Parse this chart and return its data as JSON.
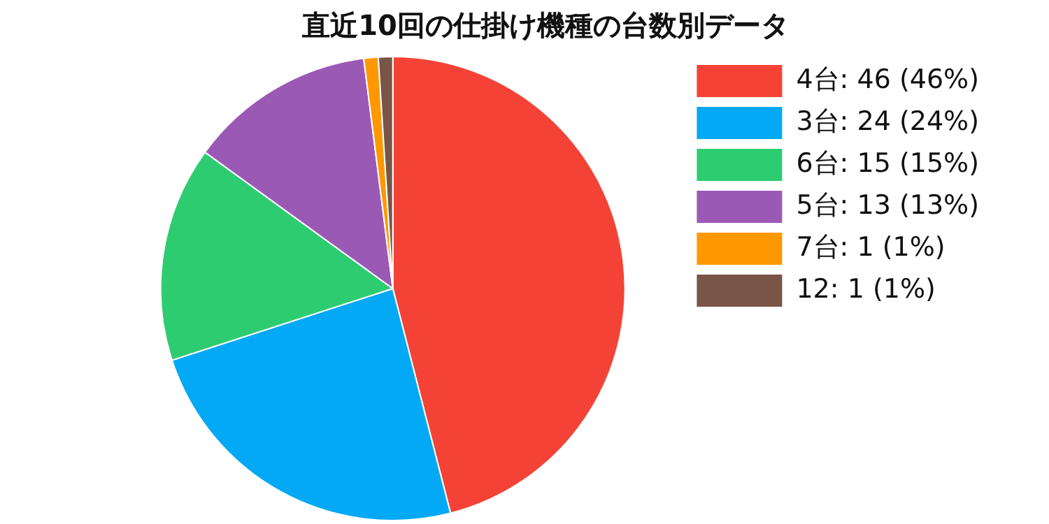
{
  "chart_data": {
    "type": "pie",
    "title": "直近10回の仕掛け機種の台数別データ",
    "categories": [
      "4台: 46 (46%)",
      "3台: 24 (24%)",
      "6台: 15 (15%)",
      "5台: 13 (13%)",
      "7台: 1 (1%)",
      "12: 1 (1%)"
    ],
    "values": [
      46,
      24,
      15,
      13,
      1,
      1
    ],
    "colors": [
      "#f44336",
      "#03a9f4",
      "#2ecc71",
      "#9b59b6",
      "#ff9800",
      "#795548"
    ],
    "legend": "right"
  }
}
